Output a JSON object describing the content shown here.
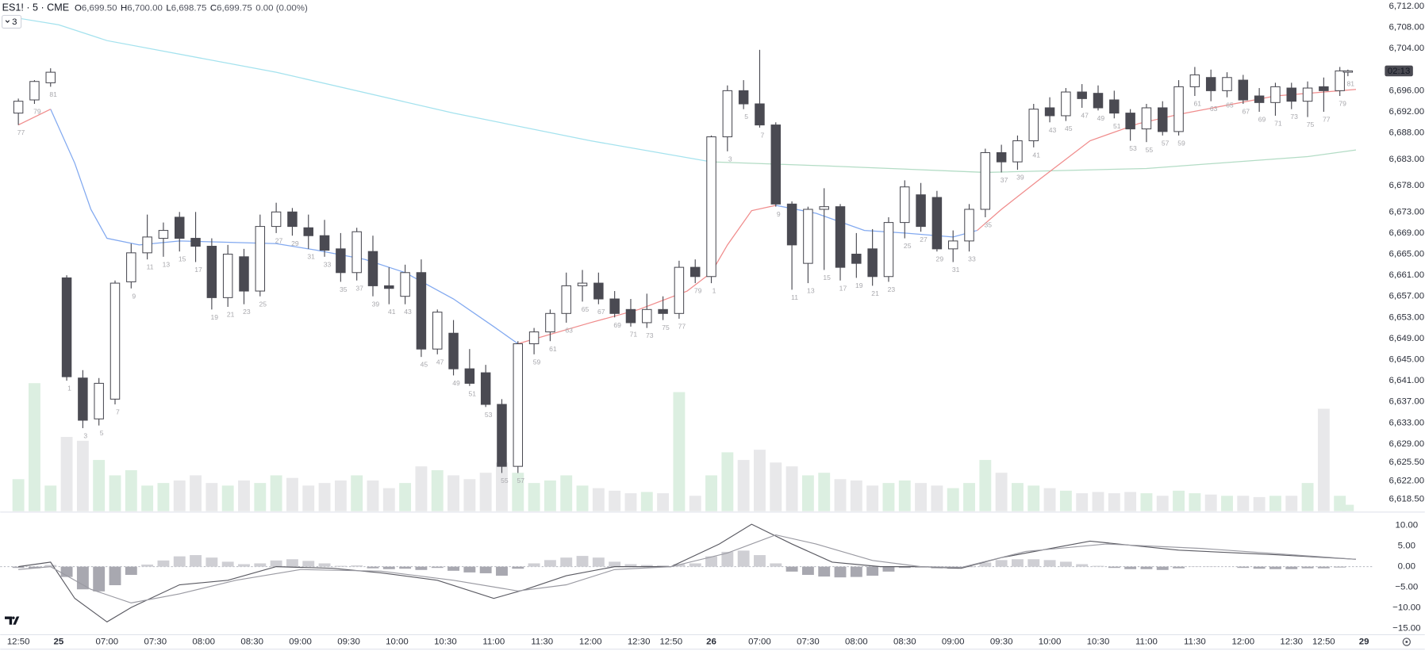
{
  "chart_data": {
    "type": "candlestick",
    "title": "ES1! · 5 · CME",
    "ohlc_legend": [
      {
        "key": "O",
        "value": "6,699.50"
      },
      {
        "key": "H",
        "value": "6,700.00"
      },
      {
        "key": "L",
        "value": "6,698.75"
      },
      {
        "key": "C",
        "value": "6,699.75"
      }
    ],
    "change": "0.00 (0.00%)",
    "indicator_count": 3,
    "countdown": "02:13",
    "xlim": [
      -2.25,
      168
    ],
    "xticks": [
      {
        "value": 0,
        "label": "12:50"
      },
      {
        "value": 5,
        "label": "25"
      },
      {
        "value": 11,
        "label": "07:00"
      },
      {
        "value": 17,
        "label": "07:30"
      },
      {
        "value": 23,
        "label": "08:00"
      },
      {
        "value": 29,
        "label": "08:30"
      },
      {
        "value": 35,
        "label": "09:00"
      },
      {
        "value": 41,
        "label": "09:30"
      },
      {
        "value": 47,
        "label": "10:00"
      },
      {
        "value": 53,
        "label": "10:30"
      },
      {
        "value": 59,
        "label": "11:00"
      },
      {
        "value": 65,
        "label": "11:30"
      },
      {
        "value": 71,
        "label": "12:00"
      },
      {
        "value": 77,
        "label": "12:30"
      },
      {
        "value": 81,
        "label": "12:50"
      },
      {
        "value": 86,
        "label": "26"
      },
      {
        "value": 92,
        "label": "07:00"
      },
      {
        "value": 98,
        "label": "07:30"
      },
      {
        "value": 104,
        "label": "08:00"
      },
      {
        "value": 110,
        "label": "08:30"
      },
      {
        "value": 116,
        "label": "09:00"
      },
      {
        "value": 122,
        "label": "09:30"
      },
      {
        "value": 128,
        "label": "10:00"
      },
      {
        "value": 134,
        "label": "10:30"
      },
      {
        "value": 140,
        "label": "11:00"
      },
      {
        "value": 146,
        "label": "11:30"
      },
      {
        "value": 152,
        "label": "12:00"
      },
      {
        "value": 158,
        "label": "12:30"
      },
      {
        "value": 162,
        "label": "12:50"
      },
      {
        "value": 167,
        "label": "29"
      }
    ],
    "ylim": [
      6616.25,
      6713.2
    ],
    "yticks": [
      {
        "value": 6712,
        "label": "6,712.00"
      },
      {
        "value": 6708,
        "label": "6,708.00"
      },
      {
        "value": 6704,
        "label": "6,704.00"
      },
      {
        "value": 6696,
        "label": "6,696.00"
      },
      {
        "value": 6692,
        "label": "6,692.00"
      },
      {
        "value": 6688,
        "label": "6,688.00"
      },
      {
        "value": 6683,
        "label": "6,683.00"
      },
      {
        "value": 6678,
        "label": "6,678.00"
      },
      {
        "value": 6673,
        "label": "6,673.00"
      },
      {
        "value": 6669,
        "label": "6,669.00"
      },
      {
        "value": 6665,
        "label": "6,665.00"
      },
      {
        "value": 6661,
        "label": "6,661.00"
      },
      {
        "value": 6657,
        "label": "6,657.00"
      },
      {
        "value": 6653,
        "label": "6,653.00"
      },
      {
        "value": 6649,
        "label": "6,649.00"
      },
      {
        "value": 6645,
        "label": "6,645.00"
      },
      {
        "value": 6641,
        "label": "6,641.00"
      },
      {
        "value": 6637,
        "label": "6,637.00"
      },
      {
        "value": 6633,
        "label": "6,633.00"
      },
      {
        "value": 6629,
        "label": "6,629.00"
      },
      {
        "value": 6625.5,
        "label": "6,625.50"
      },
      {
        "value": 6622,
        "label": "6,622.00"
      },
      {
        "value": 6618.5,
        "label": "6,618.50"
      }
    ],
    "grid": false,
    "colors": {
      "up_body": "#ffffff",
      "down_body": "#4a4a52",
      "wick": "#4a4a52",
      "up_volume": "#dcefe1",
      "down_volume": "#e8e8ea"
    },
    "vlim": [
      0,
      100
    ],
    "candles": {
      "x": [
        0,
        2,
        4,
        6,
        8,
        10,
        12,
        14,
        16,
        18,
        20,
        22,
        24,
        26,
        28,
        30,
        32,
        34,
        36,
        38,
        40,
        42,
        44,
        46,
        48,
        50,
        52,
        54,
        56,
        58,
        60,
        62,
        64,
        66,
        68,
        70,
        72,
        74,
        76,
        78,
        80,
        82,
        84,
        86,
        88,
        90,
        92,
        94,
        96,
        98,
        100,
        102,
        104,
        106,
        108,
        110,
        112,
        114,
        116,
        118,
        120,
        122,
        124,
        126,
        128,
        130,
        132,
        134,
        136,
        138,
        140,
        142,
        144,
        146,
        148,
        150,
        152,
        154,
        156,
        158,
        160,
        162,
        164,
        165
      ],
      "open": [
        6691.75,
        6694.25,
        6697.5,
        6660.5,
        6641.5,
        6633.75,
        6637.5,
        6659.75,
        6665.25,
        6668,
        6672,
        6668,
        6666.5,
        6656.75,
        6664.5,
        6658,
        6670.25,
        6673,
        6670,
        6668.5,
        6666,
        6661.5,
        6665.5,
        6659,
        6657,
        6661.5,
        6647,
        6650,
        6643.25,
        6642.5,
        6636.5,
        6624.75,
        6648,
        6650.25,
        6653.75,
        6659,
        6659.5,
        6656.5,
        6654.5,
        6652,
        6654.5,
        6653.75,
        6662.5,
        6660.75,
        6687.25,
        6696,
        6693.5,
        6689.5,
        6674.5,
        6663.25,
        6673.5,
        6674,
        6665,
        6666,
        6660.75,
        6671,
        6676.25,
        6675.75,
        6666,
        6667.5,
        6673.5,
        6684.25,
        6682.5,
        6686.5,
        6692.75,
        6691.25,
        6695.75,
        6695.5,
        6694.25,
        6691.75,
        6688.75,
        6692.75,
        6688.25,
        6696.75,
        6698.5,
        6696,
        6698,
        6695,
        6693.75,
        6696.5,
        6694,
        6696.75,
        6696,
        6699.5
      ],
      "high": [
        6694.5,
        6698,
        6700.25,
        6661,
        6643,
        6641.5,
        6660,
        6667,
        6672.5,
        6671,
        6673,
        6673,
        6668,
        6666.75,
        6666,
        6672.5,
        6674.75,
        6673.75,
        6672.5,
        6671.5,
        6669,
        6670,
        6668.5,
        6662.5,
        6663,
        6664,
        6654.5,
        6652.5,
        6647,
        6644,
        6637.5,
        6648.5,
        6651,
        6654.5,
        6661.5,
        6662,
        6661.5,
        6658,
        6656.5,
        6657.5,
        6657,
        6663.75,
        6664,
        6687.5,
        6697,
        6698,
        6703.75,
        6690,
        6675,
        6674,
        6677.5,
        6674.5,
        6669,
        6669.75,
        6672,
        6679,
        6678.5,
        6677,
        6669.5,
        6674.5,
        6685,
        6685.75,
        6687.5,
        6693.5,
        6694.75,
        6696.5,
        6697.25,
        6697,
        6696,
        6692.5,
        6693.5,
        6694,
        6698,
        6700.5,
        6700,
        6699.5,
        6699,
        6696.5,
        6697.5,
        6697.5,
        6697.75,
        6698.5,
        6700.5,
        6700
      ],
      "low": [
        6689.5,
        6693.5,
        6696.75,
        6641,
        6632,
        6632.5,
        6636.5,
        6658.5,
        6664,
        6664.5,
        6665.5,
        6663.5,
        6654.5,
        6655,
        6655.5,
        6657,
        6669,
        6668.5,
        6666,
        6664.5,
        6659.75,
        6660,
        6657,
        6655.5,
        6655.5,
        6645.5,
        6646,
        6642,
        6640,
        6636,
        6623.5,
        6623.5,
        6646,
        6648.5,
        6652,
        6656,
        6655.5,
        6653,
        6651.25,
        6651,
        6652.5,
        6652.75,
        6659.5,
        6659.5,
        6684.5,
        6692.5,
        6689,
        6674,
        6658.25,
        6659.5,
        6662,
        6660,
        6660.5,
        6659,
        6659.75,
        6668,
        6669.25,
        6665.5,
        6663.5,
        6665.5,
        6672,
        6680.5,
        6681,
        6685.25,
        6690,
        6690.25,
        6692.75,
        6692.25,
        6690.75,
        6686.5,
        6686.25,
        6687.5,
        6687.5,
        6695,
        6694,
        6694.75,
        6693.5,
        6692,
        6691.25,
        6692.5,
        6691,
        6692,
        6695,
        6698.75
      ],
      "close": [
        6694,
        6697.75,
        6699.5,
        6641.75,
        6633.5,
        6640.5,
        6659.5,
        6665.25,
        6668.25,
        6669.5,
        6668,
        6666.5,
        6656.75,
        6665,
        6658,
        6670.25,
        6673,
        6670.25,
        6668.5,
        6665.75,
        6661.5,
        6669.25,
        6659,
        6658.5,
        6661.5,
        6647,
        6654,
        6643.25,
        6640.5,
        6636.5,
        6624.75,
        6648,
        6650.25,
        6653.75,
        6659,
        6659.5,
        6656.5,
        6653.75,
        6652,
        6654.5,
        6653.75,
        6662.5,
        6660.75,
        6687.25,
        6696,
        6693.5,
        6689.5,
        6674.5,
        6666.75,
        6673.5,
        6674,
        6662.5,
        6663.25,
        6660.75,
        6671,
        6677.75,
        6670.25,
        6666,
        6667.5,
        6673.5,
        6684.25,
        6682.5,
        6686.5,
        6692.5,
        6691.25,
        6695.75,
        6694.5,
        6692.75,
        6691.75,
        6688.75,
        6692.75,
        6688.25,
        6696.75,
        6699,
        6696,
        6698.5,
        6694.25,
        6693.75,
        6696.75,
        6694,
        6696.5,
        6696,
        6699.75,
        6699.75
      ],
      "volume": [
        25,
        100,
        20,
        58,
        55,
        40,
        28,
        32,
        20,
        22,
        24,
        28,
        22,
        20,
        24,
        22,
        28,
        26,
        20,
        22,
        24,
        28,
        24,
        18,
        22,
        35,
        32,
        28,
        25,
        30,
        38,
        30,
        22,
        24,
        28,
        20,
        18,
        16,
        14,
        15,
        14,
        93,
        12,
        28,
        46,
        40,
        48,
        38,
        35,
        28,
        30,
        25,
        24,
        20,
        22,
        24,
        22,
        20,
        18,
        22,
        40,
        30,
        22,
        20,
        18,
        16,
        14,
        15,
        14,
        15,
        14,
        12,
        16,
        14,
        13,
        12,
        12,
        11,
        12,
        12,
        22,
        80,
        12,
        5
      ],
      "bar_labels": [
        77,
        79,
        81,
        1,
        3,
        5,
        7,
        9,
        11,
        13,
        15,
        17,
        19,
        21,
        23,
        25,
        27,
        29,
        31,
        33,
        35,
        37,
        39,
        41,
        43,
        45,
        47,
        49,
        51,
        53,
        55,
        57,
        59,
        61,
        63,
        65,
        67,
        69,
        71,
        73,
        75,
        77,
        79,
        1,
        3,
        5,
        7,
        9,
        11,
        13,
        15,
        17,
        19,
        21,
        23,
        25,
        27,
        29,
        31,
        33,
        35,
        37,
        39,
        41,
        43,
        45,
        47,
        49,
        51,
        53,
        55,
        57,
        59,
        61,
        63,
        65,
        67,
        69,
        71,
        73,
        75,
        77,
        79,
        81
      ]
    },
    "lines": [
      {
        "color": "#a4e2ee",
        "x": [
          0,
          5,
          11,
          32,
          54,
          71,
          86
        ],
        "values": [
          6709.75,
          6708.5,
          6705.5,
          6699.5,
          6691.75,
          6686.5,
          6682.5
        ]
      },
      {
        "color": "#b3dcc5",
        "x": [
          86,
          100,
          120,
          140,
          160,
          166
        ],
        "values": [
          6682.5,
          6681.75,
          6680.5,
          6681.25,
          6683.5,
          6684.75
        ]
      },
      {
        "color": "#82a9f0",
        "x": [
          4,
          7,
          9,
          11,
          15,
          20,
          32,
          37,
          43,
          48,
          54,
          59,
          62,
          null,
          94,
          99,
          105,
          110,
          116,
          119
        ],
        "values": [
          6692.5,
          6682.25,
          6673.5,
          6668,
          6666.75,
          6667.5,
          6667,
          6665.75,
          6664,
          6661.5,
          6656.5,
          6651.25,
          6648,
          null,
          6674.25,
          6672.75,
          6669.5,
          6669,
          6668.25,
          6669.5
        ]
      },
      {
        "color": "#f08c8c",
        "x": [
          0,
          4,
          null,
          62,
          71,
          77,
          83,
          86,
          88,
          91,
          94,
          null,
          119,
          122,
          127,
          133,
          139,
          144,
          156,
          166
        ],
        "values": [
          6689.5,
          6692.5,
          null,
          6648,
          6652,
          6654.5,
          6658,
          6661.5,
          6666.75,
          6673.25,
          6674.25,
          null,
          6669.5,
          6673.5,
          6679.5,
          6686.5,
          6689.75,
          6691.5,
          6695,
          6696.25
        ]
      }
    ],
    "macd": {
      "ylim": [
        -16.5,
        12.8
      ],
      "yticks": [
        {
          "value": 10,
          "label": "10.00"
        },
        {
          "value": 5,
          "label": "5.00"
        },
        {
          "value": 0,
          "label": "0.00"
        },
        {
          "value": -5,
          "label": "−5.00"
        },
        {
          "value": -10,
          "label": "−10.00"
        },
        {
          "value": -15,
          "label": "−15.00"
        }
      ],
      "hist_colors": {
        "positive": "#cfcfd4",
        "negative": "#a8a8b0"
      },
      "histogram": [
        -0.3,
        -0.4,
        0.4,
        -2.5,
        -5.5,
        -6,
        -4.5,
        -2,
        0.5,
        1.5,
        2.5,
        2.8,
        2.2,
        1.2,
        0.6,
        0.8,
        1.5,
        1.8,
        1.4,
        0.8,
        0.2,
        0.3,
        -0.4,
        -0.6,
        -0.5,
        -0.8,
        -0.3,
        -1,
        -1.4,
        -1.6,
        -2.2,
        -0.5,
        0.8,
        1.6,
        2.2,
        2.6,
        2.2,
        1.2,
        0.6,
        0.4,
        0.3,
        0.6,
        0.8,
        2.5,
        3.6,
        3.9,
        2.8,
        0.8,
        -1.2,
        -2,
        -2.4,
        -2.6,
        -2.5,
        -2.2,
        -1.2,
        -0.3,
        -0.2,
        -0.4,
        -0.5,
        -0.1,
        1,
        1.6,
        1.8,
        1.8,
        1.6,
        1.2,
        0.6,
        0.2,
        -0.3,
        -0.6,
        -0.6,
        -0.8,
        -0.4,
        0.1,
        0.1,
        0,
        -0.3,
        -0.5,
        -0.6,
        -0.6,
        -0.4,
        -0.4,
        -0.2,
        0
      ],
      "lines": [
        {
          "color": "#5a5a62",
          "x": [
            0,
            4,
            7,
            11,
            14,
            20,
            26,
            32,
            39,
            45,
            52,
            59,
            63,
            68,
            74,
            81,
            87,
            91,
            96,
            101,
            107,
            112,
            117,
            122,
            133,
            144,
            156,
            166
          ],
          "values": [
            0,
            1.1,
            -7.7,
            -13.4,
            -9.9,
            -4.4,
            -3.3,
            0,
            -0.4,
            -1.5,
            -3.3,
            -7.7,
            -5.5,
            -2.2,
            0,
            0,
            5.5,
            10.3,
            5.5,
            1.1,
            0,
            0,
            -0.4,
            2.2,
            6.2,
            4,
            2.9,
            1.8
          ]
        },
        {
          "color": "#9a9aa2",
          "x": [
            0,
            4,
            9,
            14,
            20,
            27,
            35,
            45,
            54,
            62,
            68,
            74,
            81,
            88,
            94,
            99,
            106,
            112,
            117,
            125,
            135,
            147,
            166
          ],
          "values": [
            -0.7,
            0,
            -5.5,
            -8.8,
            -6.6,
            -3.3,
            -0.7,
            -1.1,
            -3.3,
            -5.9,
            -4.4,
            -0.7,
            0,
            3.3,
            7.7,
            5.5,
            1.5,
            0,
            -0.2,
            3.7,
            5.5,
            4.4,
            1.8
          ]
        }
      ]
    }
  }
}
